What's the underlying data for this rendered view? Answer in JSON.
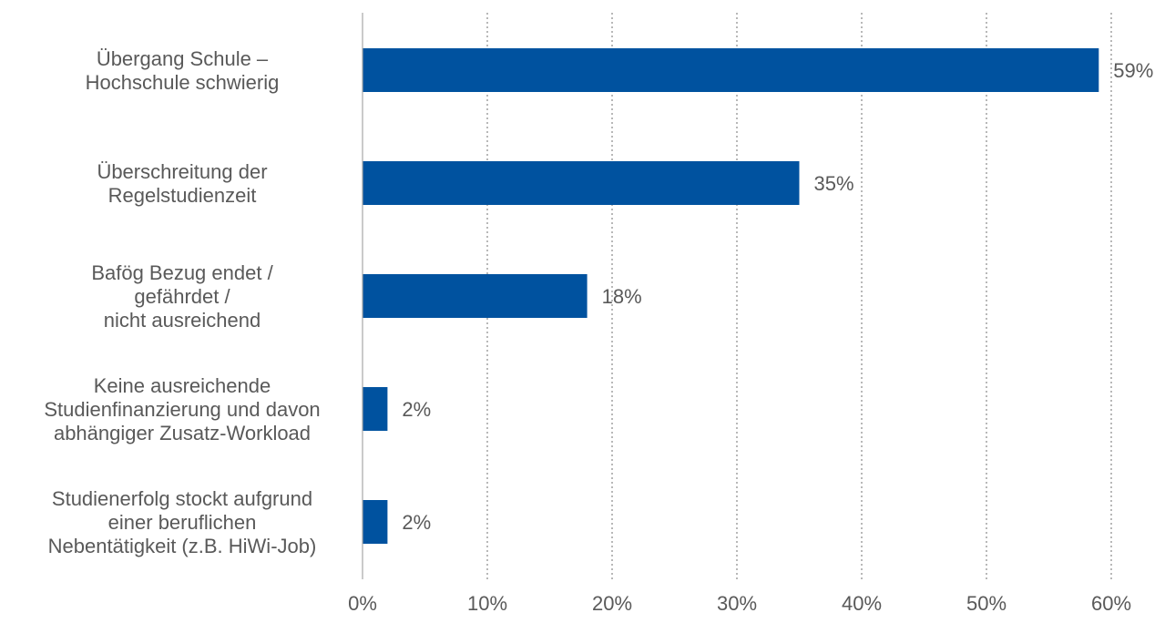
{
  "chart_data": {
    "type": "bar",
    "orientation": "horizontal",
    "categories": [
      [
        "Übergang Schule –",
        "Hochschule schwierig"
      ],
      [
        "Überschreitung der",
        "Regelstudienzeit"
      ],
      [
        "Bafög Bezug endet /",
        "gefährdet /",
        "nicht ausreichend"
      ],
      [
        "Keine ausreichende",
        "Studienfinanzierung und davon",
        "abhängiger Zusatz-Workload"
      ],
      [
        "Studienerfolg stockt aufgrund",
        "einer beruflichen",
        "Nebentätigkeit (z.B. HiWi-Job)"
      ]
    ],
    "values": [
      59,
      35,
      18,
      2,
      2
    ],
    "value_labels": [
      "59%",
      "35%",
      "18%",
      "2%",
      "2%"
    ],
    "xlim": [
      0,
      60
    ],
    "xticks": [
      0,
      10,
      20,
      30,
      40,
      50,
      60
    ],
    "xtick_labels": [
      "0%",
      "10%",
      "20%",
      "30%",
      "40%",
      "50%",
      "60%"
    ],
    "grid": "vertical dotted",
    "colors": {
      "bar": "#00529f",
      "text": "#595959",
      "axis": "#a6a6a6",
      "grid": "#a6a6a6"
    }
  }
}
